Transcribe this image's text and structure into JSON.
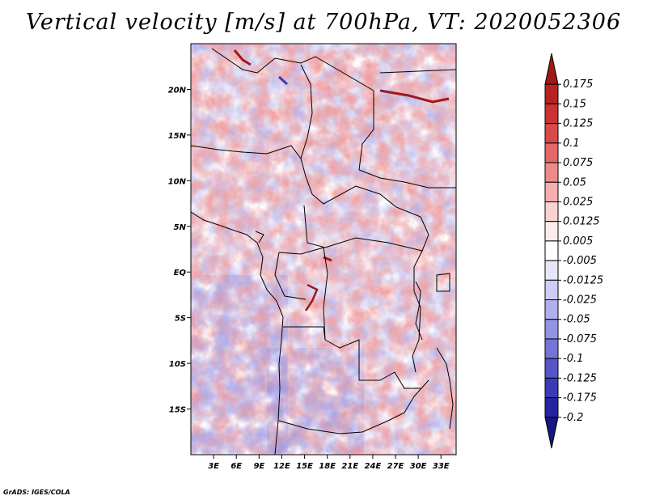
{
  "title": "Vertical velocity [m/s] at 700hPa, VT: 2020052306",
  "footer": "GrADS: IGES/COLA",
  "map": {
    "lon_ticks": [
      "3E",
      "6E",
      "9E",
      "12E",
      "15E",
      "18E",
      "21E",
      "24E",
      "27E",
      "30E",
      "33E"
    ],
    "lat_ticks": [
      "20N",
      "15N",
      "10N",
      "5N",
      "EQ",
      "5S",
      "10S",
      "15S"
    ],
    "lon_values": [
      3,
      6,
      9,
      12,
      15,
      18,
      21,
      24,
      27,
      30,
      33
    ],
    "lat_values": [
      20,
      15,
      10,
      5,
      0,
      -5,
      -10,
      -15
    ],
    "lon_range": [
      0,
      35
    ],
    "lat_range": [
      -20,
      25
    ]
  },
  "colorbar": {
    "labels": [
      "0.175",
      "0.15",
      "0.125",
      "0.1",
      "0.075",
      "0.05",
      "0.025",
      "0.0125",
      "0.005",
      "-0.005",
      "-0.0125",
      "-0.025",
      "-0.05",
      "-0.075",
      "-0.1",
      "-0.125",
      "-0.175",
      "-0.2"
    ],
    "colors": [
      "#a01818",
      "#b82222",
      "#cc3232",
      "#d84a4a",
      "#e46868",
      "#ee8a8a",
      "#f6aeae",
      "#fbd2d2",
      "#fdebeb",
      "#ffffff",
      "#e6e6fb",
      "#cdcdf6",
      "#b0b0ef",
      "#9494e6",
      "#7474da",
      "#5656ca",
      "#3a3ab6",
      "#2424a0",
      "#161684"
    ]
  },
  "colors": {
    "positive_accent": "#e46868",
    "negative_accent": "#7474da"
  }
}
